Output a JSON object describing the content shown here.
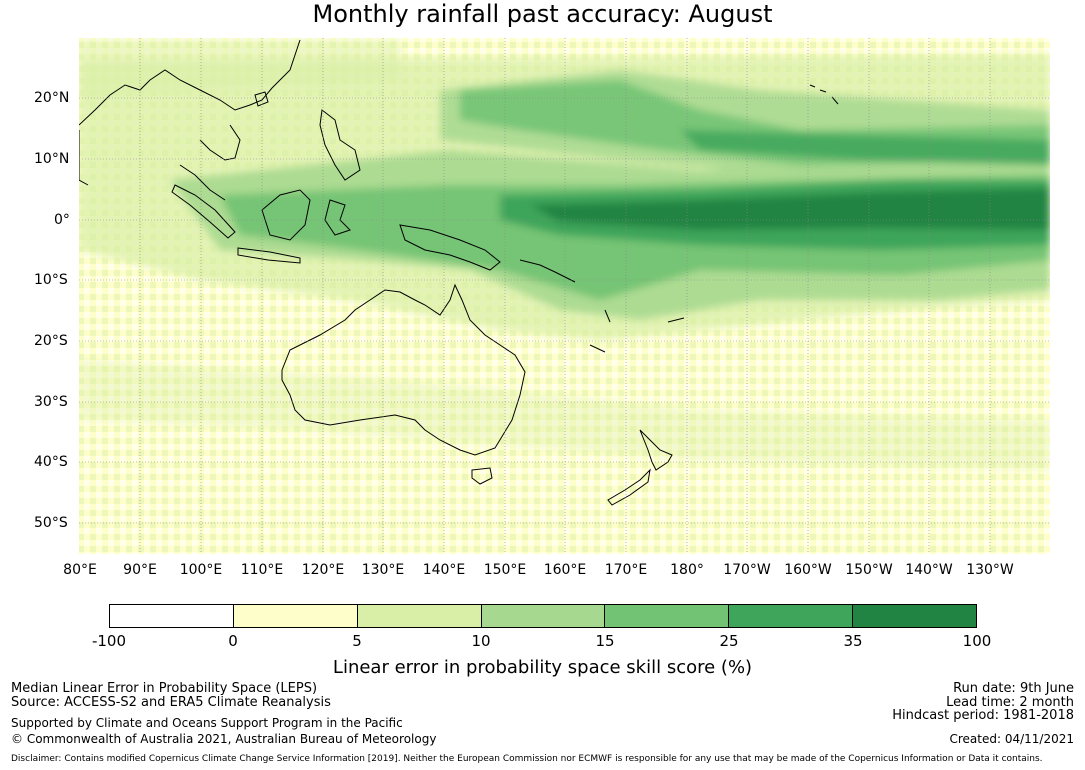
{
  "title": "Monthly rainfall past accuracy: August",
  "map": {
    "lon_labels": [
      "80°E",
      "90°E",
      "100°E",
      "110°E",
      "120°E",
      "130°E",
      "140°E",
      "150°E",
      "160°E",
      "170°E",
      "180°",
      "170°W",
      "160°W",
      "150°W",
      "140°W",
      "130°W"
    ],
    "lat_labels": [
      "20°N",
      "10°N",
      "0°",
      "10°S",
      "20°S",
      "30°S",
      "40°S",
      "50°S"
    ],
    "colors": {
      "white": "#ffffff",
      "c0_5": "#fefecb",
      "c5_10": "#d9efa7",
      "c10_15": "#a7d88f",
      "c15_25": "#73c374",
      "c25_35": "#3ea55a",
      "c35_100": "#228442"
    }
  },
  "colorbar": {
    "ticks": [
      "-100",
      "0",
      "5",
      "10",
      "15",
      "25",
      "35",
      "100"
    ],
    "colors": [
      "#ffffff",
      "#fefecb",
      "#d9efa7",
      "#a7d88f",
      "#73c374",
      "#3ea55a",
      "#228442"
    ],
    "label": "Linear error in probability space skill score (%)"
  },
  "footer": {
    "left1": "Median Linear Error in Probability Space (LEPS)",
    "left2": "Source: ACCESS-S2 and ERA5 Climate Reanalysis",
    "left3": "Supported by Climate and Oceans Support Program in the Pacific",
    "left4": "© Commonwealth of Australia 2021, Australian Bureau of Meteorology",
    "right1": "Run date: 9th June",
    "right2": "Lead time: 2 month",
    "right3": "Hindcast period: 1981-2018",
    "right4": "Created: 04/11/2021",
    "disclaimer": "Disclaimer: Contains modified Copernicus Climate Change Service Information [2019]. Neither the European Commission nor ECMWF is responsible for any use that may be made of the Copernicus Information or Data it contains."
  }
}
